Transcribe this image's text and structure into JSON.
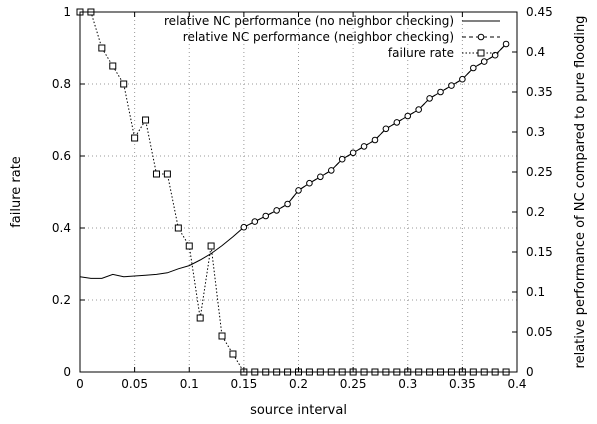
{
  "chart_data": {
    "type": "line",
    "xlabel": "source interval",
    "ylabel_left": "failure rate",
    "ylabel_right": "relative performance of NC compared to pure flooding",
    "xlim": [
      0,
      0.4
    ],
    "ylim_left": [
      0,
      1
    ],
    "ylim_right": [
      0,
      0.45
    ],
    "x_ticks": [
      "0",
      "0.05",
      "0.1",
      "0.15",
      "0.2",
      "0.25",
      "0.3",
      "0.35",
      "0.4"
    ],
    "y_left_ticks": [
      "0",
      "0.2",
      "0.4",
      "0.6",
      "0.8",
      "1"
    ],
    "y_right_ticks": [
      "0",
      "0.05",
      "0.1",
      "0.15",
      "0.2",
      "0.25",
      "0.3",
      "0.35",
      "0.4",
      "0.45"
    ],
    "grid": true,
    "legend_position": "top-right",
    "series": [
      {
        "name": "relative NC performance (no neighbor checking)",
        "axis": "right",
        "style": "solid",
        "marker": "none",
        "x": [
          0.0,
          0.01,
          0.02,
          0.03,
          0.04,
          0.05,
          0.06,
          0.07,
          0.08,
          0.09,
          0.1,
          0.11,
          0.12,
          0.13,
          0.14,
          0.15,
          0.16,
          0.17,
          0.18,
          0.19,
          0.2,
          0.21,
          0.22,
          0.23,
          0.24,
          0.25,
          0.26,
          0.27,
          0.28,
          0.29,
          0.3,
          0.31,
          0.32,
          0.33,
          0.34,
          0.35,
          0.36,
          0.37,
          0.38,
          0.39
        ],
        "y": [
          0.119,
          0.117,
          0.117,
          0.122,
          0.119,
          0.12,
          0.121,
          0.122,
          0.124,
          0.129,
          0.133,
          0.14,
          0.148,
          0.158,
          0.169,
          0.181,
          0.188,
          0.195,
          0.202,
          0.21,
          0.227,
          0.236,
          0.244,
          0.252,
          0.266,
          0.274,
          0.282,
          0.29,
          0.304,
          0.312,
          0.32,
          0.328,
          0.342,
          0.35,
          0.358,
          0.366,
          0.38,
          0.388,
          0.396,
          0.41
        ]
      },
      {
        "name": "relative NC performance (neighbor checking)",
        "axis": "right",
        "style": "dashed",
        "marker": "circle",
        "x": [
          0.15,
          0.16,
          0.17,
          0.18,
          0.19,
          0.2,
          0.21,
          0.22,
          0.23,
          0.24,
          0.25,
          0.26,
          0.27,
          0.28,
          0.29,
          0.3,
          0.31,
          0.32,
          0.33,
          0.34,
          0.35,
          0.36,
          0.37,
          0.38,
          0.39
        ],
        "y": [
          0.181,
          0.188,
          0.195,
          0.202,
          0.21,
          0.227,
          0.236,
          0.244,
          0.252,
          0.266,
          0.274,
          0.282,
          0.29,
          0.304,
          0.312,
          0.32,
          0.328,
          0.342,
          0.35,
          0.358,
          0.366,
          0.38,
          0.388,
          0.396,
          0.41
        ]
      },
      {
        "name": "failure rate",
        "axis": "left",
        "style": "dotted",
        "marker": "square",
        "x": [
          0.0,
          0.01,
          0.02,
          0.03,
          0.04,
          0.05,
          0.06,
          0.07,
          0.08,
          0.09,
          0.1,
          0.11,
          0.12,
          0.13,
          0.14,
          0.15,
          0.16,
          0.17,
          0.18,
          0.19,
          0.2,
          0.21,
          0.22,
          0.23,
          0.24,
          0.25,
          0.26,
          0.27,
          0.28,
          0.29,
          0.3,
          0.31,
          0.32,
          0.33,
          0.34,
          0.35,
          0.36,
          0.37,
          0.38,
          0.39
        ],
        "y": [
          1.0,
          1.0,
          0.9,
          0.85,
          0.8,
          0.65,
          0.7,
          0.55,
          0.55,
          0.4,
          0.35,
          0.15,
          0.35,
          0.1,
          0.05,
          0.0,
          0.0,
          0.0,
          0.0,
          0.0,
          0.0,
          0.0,
          0.0,
          0.0,
          0.0,
          0.0,
          0.0,
          0.0,
          0.0,
          0.0,
          0.0,
          0.0,
          0.0,
          0.0,
          0.0,
          0.0,
          0.0,
          0.0,
          0.0,
          0.0
        ]
      }
    ]
  }
}
